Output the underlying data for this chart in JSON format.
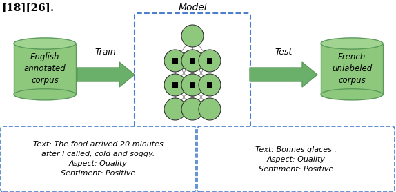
{
  "bg_color": "#ffffff",
  "title_text": "[18][26].",
  "cylinder_color": "#8dc87d",
  "cylinder_edge": "#5a9a5a",
  "cylinder_top_color": "#a0d490",
  "arrow_color": "#6ab06a",
  "arrow_edge": "#4a8a4a",
  "node_color": "#8dc87d",
  "node_edge": "#333333",
  "dashed_box_color": "#4a7fcc",
  "left_corpus_label": "English\nannotated\ncorpus",
  "right_corpus_label": "French\nunlabeled\ncorpus",
  "train_label": "Train",
  "test_label": "Test",
  "model_label": "Model",
  "left_box_text": "Text: The food arrived 20 minutes\nafter I called, cold and soggy.\nAspect: Quality\nSentiment: Positive",
  "right_box_text": "Text: Bonnes glaces .\nAspect: Quality\nSentiment: Positive",
  "figw": 5.74,
  "figh": 2.78,
  "dpi": 100
}
